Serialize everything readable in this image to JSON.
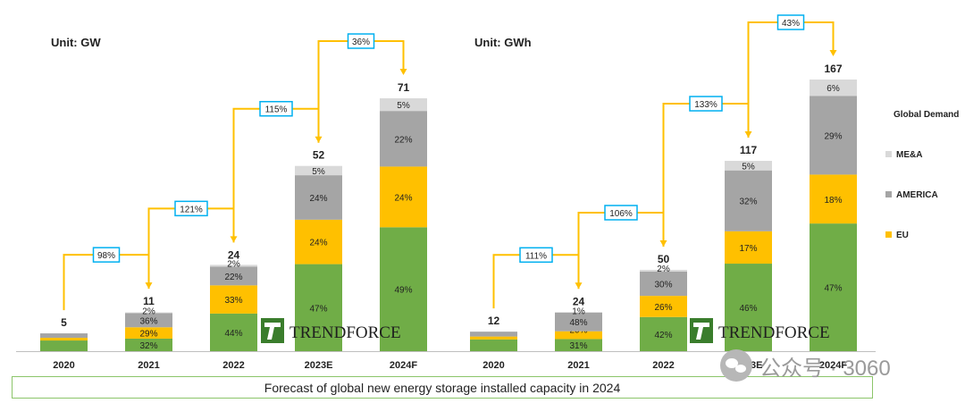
{
  "colors": {
    "green": "#70ad47",
    "yellow": "#ffc000",
    "gray": "#a5a5a5",
    "lightgray": "#d9d9d9",
    "growth_arrow": "#ffc000",
    "growth_box_border": "#00b0f0"
  },
  "chart_data": [
    {
      "type": "bar",
      "stacked": true,
      "unit_label": "Unit: GW",
      "categories": [
        "2020",
        "2021",
        "2022",
        "2023E",
        "2024F"
      ],
      "totals": [
        5,
        11,
        24,
        52,
        71
      ],
      "series": [
        {
          "key": "green",
          "color": "#70ad47",
          "shares": [
            0.6,
            0.32,
            0.44,
            0.47,
            0.49
          ],
          "labels": [
            "",
            "32%",
            "44%",
            "47%",
            "49%"
          ]
        },
        {
          "name": "EU",
          "key": "eu",
          "color": "#ffc000",
          "shares": [
            0.15,
            0.29,
            0.33,
            0.24,
            0.24
          ],
          "labels": [
            "",
            "29%",
            "33%",
            "24%",
            "24%"
          ]
        },
        {
          "name": "AMERICA",
          "key": "america",
          "color": "#a5a5a5",
          "shares": [
            0.25,
            0.36,
            0.22,
            0.24,
            0.22
          ],
          "labels": [
            "",
            "36%",
            "22%",
            "24%",
            "22%"
          ]
        },
        {
          "name": "ME&A",
          "key": "mea",
          "color": "#d9d9d9",
          "shares": [
            0.0,
            0.02,
            0.02,
            0.05,
            0.05
          ],
          "labels": [
            "",
            "2%",
            "2%",
            "5%",
            "5%"
          ]
        }
      ],
      "growth": [
        "98%",
        "121%",
        "115%",
        "36%"
      ]
    },
    {
      "type": "bar",
      "stacked": true,
      "unit_label": "Unit: GWh",
      "categories": [
        "2020",
        "2021",
        "2022",
        "2023E",
        "2024F"
      ],
      "totals": [
        12,
        24,
        50,
        117,
        167
      ],
      "series": [
        {
          "key": "green",
          "color": "#70ad47",
          "shares": [
            0.6,
            0.31,
            0.42,
            0.46,
            0.47
          ],
          "labels": [
            "",
            "31%",
            "42%",
            "46%",
            "47%"
          ]
        },
        {
          "name": "EU",
          "key": "eu",
          "color": "#ffc000",
          "shares": [
            0.15,
            0.2,
            0.26,
            0.17,
            0.18
          ],
          "labels": [
            "",
            "20%",
            "26%",
            "17%",
            "18%"
          ]
        },
        {
          "name": "AMERICA",
          "key": "america",
          "color": "#a5a5a5",
          "shares": [
            0.25,
            0.48,
            0.3,
            0.32,
            0.29
          ],
          "labels": [
            "",
            "48%",
            "30%",
            "32%",
            "29%"
          ]
        },
        {
          "name": "ME&A",
          "key": "mea",
          "color": "#d9d9d9",
          "shares": [
            0.0,
            0.01,
            0.02,
            0.05,
            0.06
          ],
          "labels": [
            "",
            "1%",
            "2%",
            "5%",
            "6%"
          ]
        }
      ],
      "growth": [
        "111%",
        "106%",
        "133%",
        "43%"
      ]
    }
  ],
  "legend": {
    "title": "Global Demand",
    "items": [
      {
        "label": "ME&A",
        "color": "#d9d9d9"
      },
      {
        "label": "AMERICA",
        "color": "#a5a5a5"
      },
      {
        "label": "EU",
        "color": "#ffc000"
      }
    ]
  },
  "logo": {
    "brand": "TrendForce",
    "text": "TRENDFORCE"
  },
  "caption": "Forecast of global new energy storage installed capacity in 2024",
  "watermark": {
    "text": "公众号 · 3060"
  }
}
